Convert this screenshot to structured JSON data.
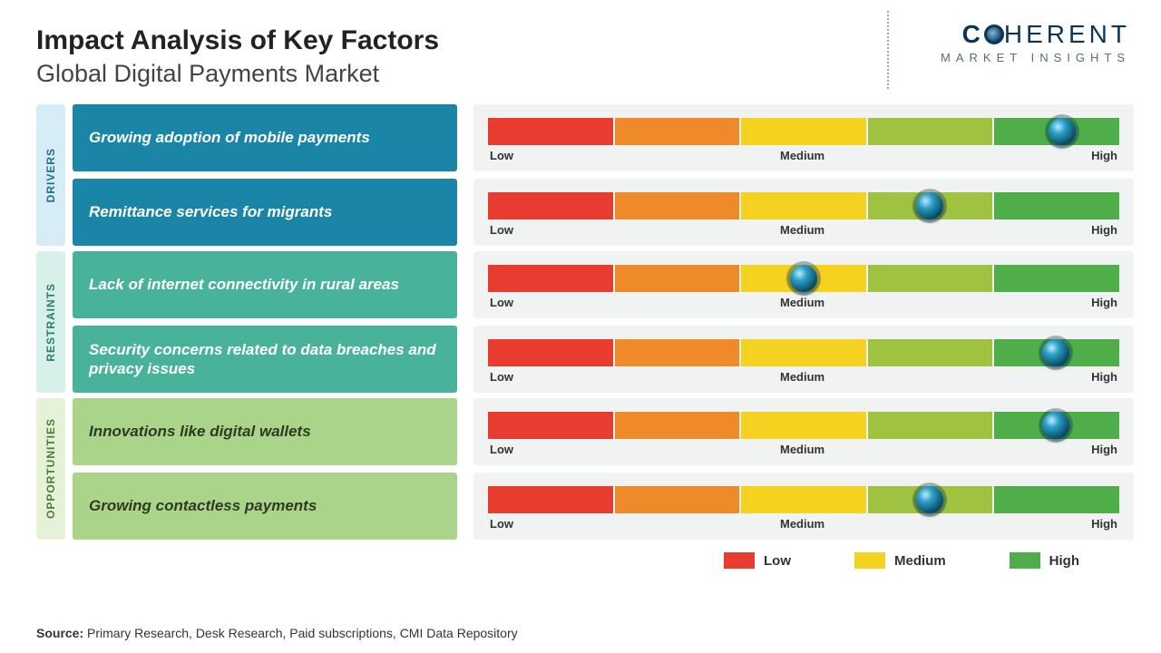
{
  "header": {
    "title": "Impact Analysis of Key Factors",
    "subtitle": "Global Digital Payments Market"
  },
  "logo": {
    "line1_pre": "C",
    "line1_post": "HERENT",
    "line2": "MARKET INSIGHTS",
    "brand_color": "#0b3556"
  },
  "gauge": {
    "segment_colors": [
      "#e73c2f",
      "#ef8a2a",
      "#f4d21f",
      "#9fc241",
      "#4fae4a"
    ],
    "scale_labels": {
      "low": "Low",
      "medium": "Medium",
      "high": "High"
    },
    "marker_color": "#0a6a8a",
    "track_bg": "#f1f2f2"
  },
  "groups": [
    {
      "id": "drivers",
      "label": "DRIVERS",
      "tab_bg": "#d7edf5",
      "tab_text": "#1e6d92",
      "factor_bg": "#1a85a7",
      "factor_text": "#ffffff",
      "rows": [
        {
          "factor": "Growing adoption of mobile payments",
          "value_pct": 91
        },
        {
          "factor": "Remittance services for migrants",
          "value_pct": 70
        }
      ]
    },
    {
      "id": "restraints",
      "label": "RESTRAINTS",
      "tab_bg": "#d7f0e9",
      "tab_text": "#2a7d6a",
      "factor_bg": "#48b39a",
      "factor_text": "#ffffff",
      "rows": [
        {
          "factor": "Lack of internet connectivity in rural areas",
          "value_pct": 50
        },
        {
          "factor": "Security concerns related to data breaches and privacy issues",
          "value_pct": 90
        }
      ]
    },
    {
      "id": "opportunities",
      "label": "OPPORTUNITIES",
      "tab_bg": "#e5f2d8",
      "tab_text": "#4c7a38",
      "factor_bg": "#a9d48a",
      "factor_text": "#2d3b22",
      "rows": [
        {
          "factor": "Innovations like digital wallets",
          "value_pct": 90
        },
        {
          "factor": "Growing contactless payments",
          "value_pct": 70
        }
      ]
    }
  ],
  "legend": {
    "items": [
      {
        "label": "Low",
        "color": "#e73c2f"
      },
      {
        "label": "Medium",
        "color": "#f4d21f"
      },
      {
        "label": "High",
        "color": "#4fae4a"
      }
    ]
  },
  "source": {
    "label": "Source:",
    "text": "Primary Research, Desk Research, Paid subscriptions, CMI Data Repository"
  }
}
